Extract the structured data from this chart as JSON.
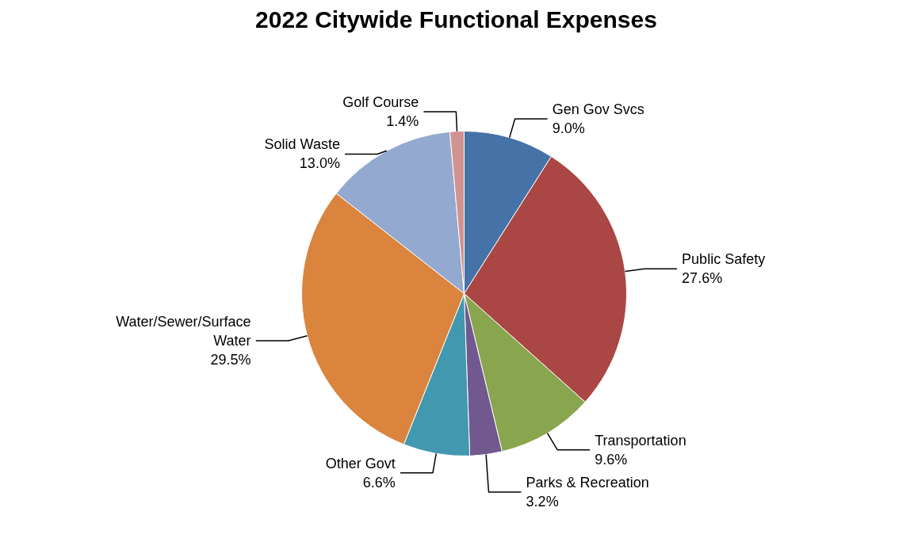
{
  "chart_data": {
    "type": "pie",
    "title": "2022 Citywide Functional Expenses",
    "categories": [
      "Gen Gov Svcs",
      "Public Safety",
      "Transportation",
      "Parks & Recreation",
      "Other Govt",
      "Water/Sewer/Surface Water",
      "Solid Waste",
      "Golf Course"
    ],
    "values": [
      9.0,
      27.6,
      9.6,
      3.2,
      6.6,
      29.5,
      13.0,
      1.4
    ],
    "value_labels": [
      "9.0%",
      "27.6%",
      "9.6%",
      "3.2%",
      "6.6%",
      "29.5%",
      "13.0%",
      "1.4%"
    ],
    "colors": [
      "#4572a7",
      "#aa4643",
      "#89a54e",
      "#71588f",
      "#4198af",
      "#db843d",
      "#93a9cf",
      "#d19392"
    ]
  }
}
